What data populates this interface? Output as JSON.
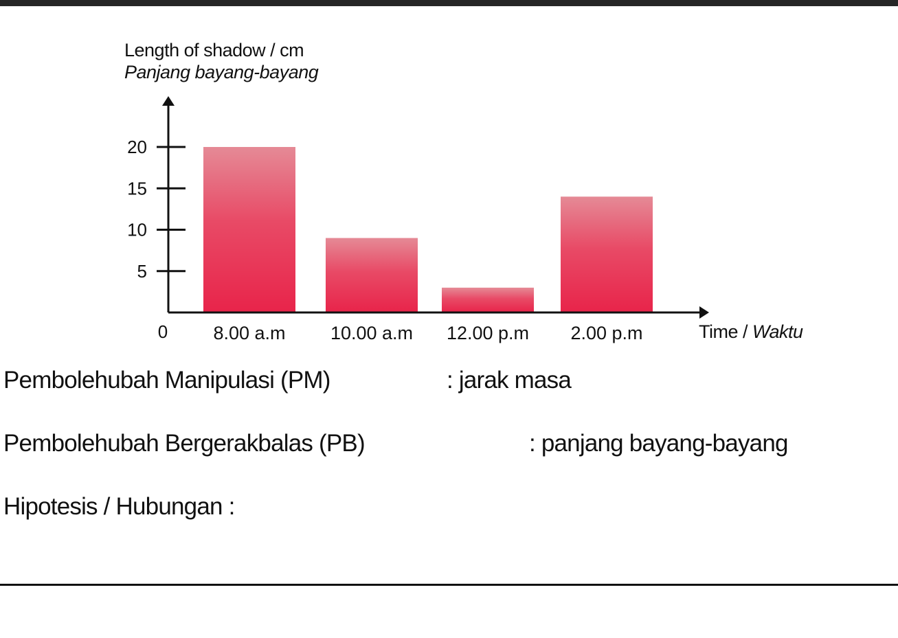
{
  "chart_data": {
    "type": "bar",
    "ylabel_line1": "Length of shadow / cm",
    "ylabel_line2": "Panjang bayang-bayang",
    "xlabel_main": "Time / ",
    "xlabel_italic": "Waktu",
    "categories": [
      "8.00 a.m",
      "10.00 a.m",
      "12.00 p.m",
      "2.00 p.m"
    ],
    "values": [
      20,
      9,
      3,
      14
    ],
    "origin_label": "0",
    "yticks": [
      5,
      10,
      15,
      20
    ],
    "ylim": [
      0,
      23
    ],
    "bar_color": "#e8244a"
  },
  "text": {
    "pm_label": "Pembolehubah Manipulasi (PM)",
    "pm_value": ": jarak masa",
    "pb_label": "Pembolehubah Bergerakbalas (PB)",
    "pb_value": ": panjang bayang-bayang",
    "hypothesis_label": "Hipotesis / Hubungan :"
  }
}
